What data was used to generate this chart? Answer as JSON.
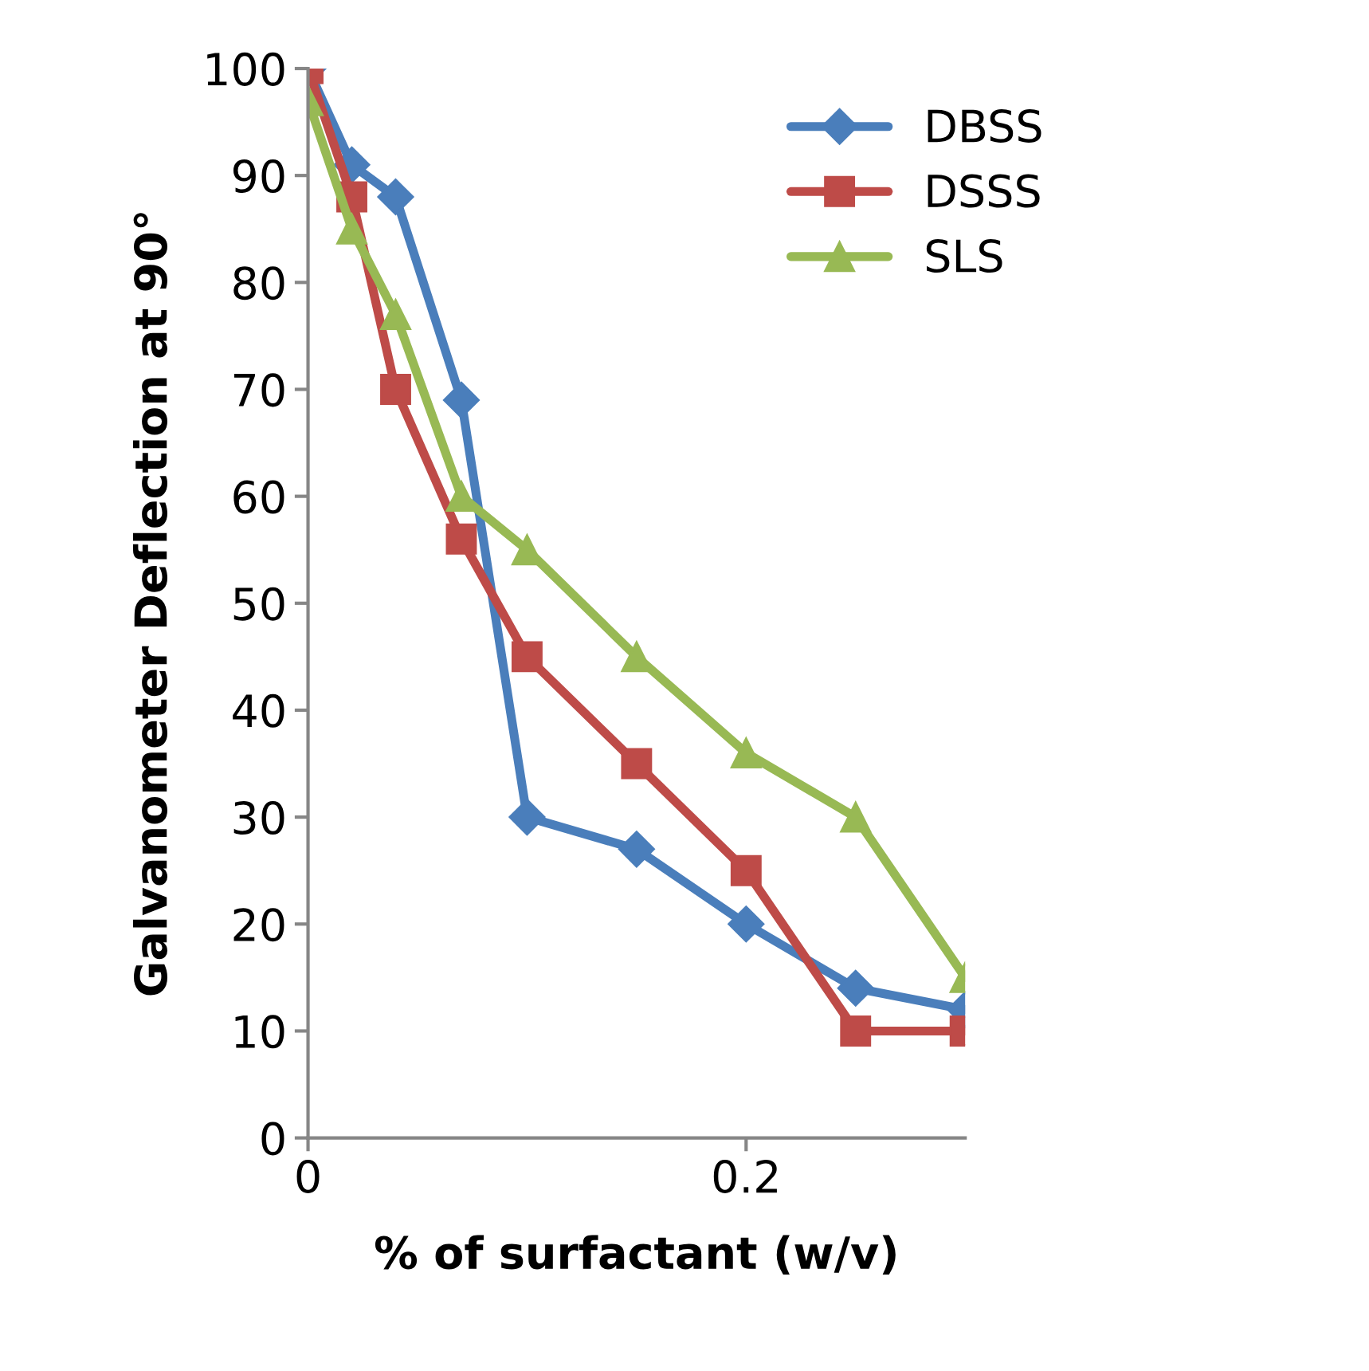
{
  "chart_data": {
    "type": "line",
    "xlabel": "% of surfactant (w/v)",
    "ylabel": "Galvanometer Deflection at 90°",
    "x": [
      0,
      0.02,
      0.04,
      0.07,
      0.1,
      0.15,
      0.2,
      0.25,
      0.3
    ],
    "series": [
      {
        "name": "DBSS",
        "color": "#4a7ebb",
        "marker": "diamond",
        "values": [
          100,
          91,
          88,
          69,
          30,
          27,
          20,
          14,
          12
        ]
      },
      {
        "name": "DSSS",
        "color": "#be4b48",
        "marker": "square",
        "values": [
          100,
          88,
          70,
          56,
          45,
          35,
          25,
          10,
          10
        ]
      },
      {
        "name": "SLS",
        "color": "#98b954",
        "marker": "triangle",
        "values": [
          97,
          85,
          77,
          60,
          55,
          45,
          36,
          30,
          15
        ]
      }
    ],
    "xlim": [
      0,
      0.3
    ],
    "xticks": [
      0,
      0.2
    ],
    "ylim": [
      0,
      100
    ],
    "yticks": [
      0,
      10,
      20,
      30,
      40,
      50,
      60,
      70,
      80,
      90,
      100
    ],
    "grid": false,
    "legend": "top right",
    "line_style": "solid"
  }
}
